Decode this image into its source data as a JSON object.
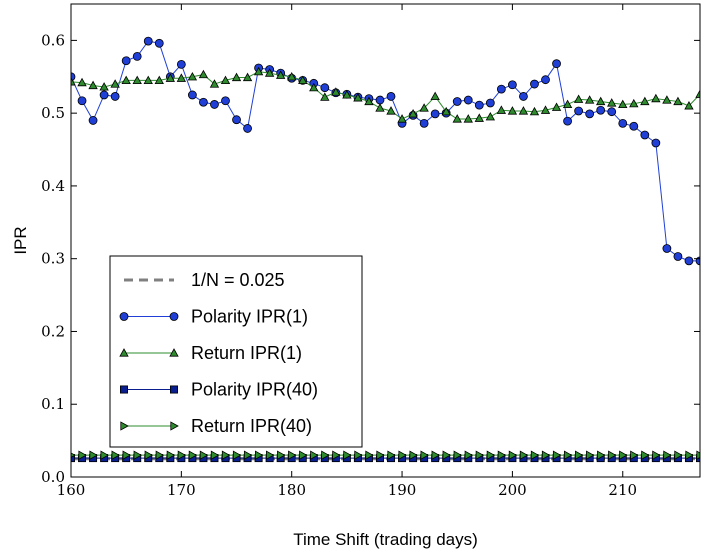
{
  "chart_data": {
    "type": "line",
    "xlabel": "Time Shift (trading days)",
    "ylabel": "IPR",
    "xlim": [
      160,
      217
    ],
    "ylim": [
      0.0,
      0.65
    ],
    "xticks": [
      160,
      170,
      180,
      190,
      200,
      210
    ],
    "xtick_labels": [
      "160",
      "170",
      "180",
      "190",
      "200",
      "210"
    ],
    "yticks": [
      0.0,
      0.1,
      0.2,
      0.3,
      0.4,
      0.5,
      0.6
    ],
    "ytick_labels": [
      "0.0",
      "0.1",
      "0.2",
      "0.3",
      "0.4",
      "0.5",
      "0.6"
    ],
    "grid": false,
    "legend_position": "lower-left",
    "x": [
      160,
      161,
      162,
      163,
      164,
      165,
      166,
      167,
      168,
      169,
      170,
      171,
      172,
      173,
      174,
      175,
      176,
      177,
      178,
      179,
      180,
      181,
      182,
      183,
      184,
      185,
      186,
      187,
      188,
      189,
      190,
      191,
      192,
      193,
      194,
      195,
      196,
      197,
      198,
      199,
      200,
      201,
      202,
      203,
      204,
      205,
      206,
      207,
      208,
      209,
      210,
      211,
      212,
      213,
      214,
      215,
      216,
      217
    ],
    "series": [
      {
        "name": "1/N = 0.025",
        "marker": "none",
        "linestyle": "dashed",
        "color": "#808080",
        "values": [
          0.025,
          0.025,
          0.025,
          0.025,
          0.025,
          0.025,
          0.025,
          0.025,
          0.025,
          0.025,
          0.025,
          0.025,
          0.025,
          0.025,
          0.025,
          0.025,
          0.025,
          0.025,
          0.025,
          0.025,
          0.025,
          0.025,
          0.025,
          0.025,
          0.025,
          0.025,
          0.025,
          0.025,
          0.025,
          0.025,
          0.025,
          0.025,
          0.025,
          0.025,
          0.025,
          0.025,
          0.025,
          0.025,
          0.025,
          0.025,
          0.025,
          0.025,
          0.025,
          0.025,
          0.025,
          0.025,
          0.025,
          0.025,
          0.025,
          0.025,
          0.025,
          0.025,
          0.025,
          0.025,
          0.025,
          0.025,
          0.025,
          0.025
        ]
      },
      {
        "name": "Polarity IPR(1)",
        "marker": "circle",
        "linestyle": "solid",
        "color": "#1f3fd6",
        "values": [
          0.55,
          0.517,
          0.49,
          0.525,
          0.523,
          0.572,
          0.578,
          0.599,
          0.596,
          0.55,
          0.567,
          0.525,
          0.515,
          0.512,
          0.517,
          0.491,
          0.479,
          0.562,
          0.56,
          0.555,
          0.548,
          0.545,
          0.541,
          0.535,
          0.528,
          0.526,
          0.522,
          0.52,
          0.518,
          0.523,
          0.486,
          0.497,
          0.486,
          0.499,
          0.5,
          0.516,
          0.518,
          0.511,
          0.514,
          0.533,
          0.539,
          0.523,
          0.54,
          0.546,
          0.568,
          0.489,
          0.503,
          0.499,
          0.504,
          0.502,
          0.486,
          0.482,
          0.47,
          0.459,
          0.314,
          0.303,
          0.297,
          0.297
        ]
      },
      {
        "name": "Return IPR(1)",
        "marker": "triangle-up",
        "linestyle": "solid",
        "color": "#2e8b2e",
        "values": [
          0.543,
          0.542,
          0.538,
          0.536,
          0.54,
          0.545,
          0.545,
          0.545,
          0.545,
          0.548,
          0.548,
          0.55,
          0.553,
          0.54,
          0.545,
          0.549,
          0.549,
          0.557,
          0.555,
          0.552,
          0.55,
          0.545,
          0.535,
          0.522,
          0.529,
          0.525,
          0.521,
          0.516,
          0.507,
          0.503,
          0.492,
          0.499,
          0.507,
          0.523,
          0.502,
          0.492,
          0.492,
          0.493,
          0.495,
          0.504,
          0.503,
          0.503,
          0.502,
          0.504,
          0.508,
          0.512,
          0.519,
          0.518,
          0.516,
          0.514,
          0.512,
          0.513,
          0.516,
          0.52,
          0.518,
          0.516,
          0.51,
          0.526
        ]
      },
      {
        "name": "Polarity IPR(40)",
        "marker": "square",
        "linestyle": "solid",
        "color": "#0a1f8f",
        "values": [
          0.026,
          0.026,
          0.026,
          0.026,
          0.026,
          0.026,
          0.026,
          0.026,
          0.026,
          0.026,
          0.026,
          0.026,
          0.026,
          0.026,
          0.026,
          0.026,
          0.026,
          0.026,
          0.026,
          0.026,
          0.026,
          0.026,
          0.026,
          0.026,
          0.026,
          0.026,
          0.026,
          0.026,
          0.026,
          0.026,
          0.026,
          0.026,
          0.026,
          0.026,
          0.026,
          0.026,
          0.026,
          0.026,
          0.026,
          0.026,
          0.026,
          0.026,
          0.026,
          0.026,
          0.026,
          0.026,
          0.026,
          0.026,
          0.026,
          0.026,
          0.026,
          0.026,
          0.026,
          0.026,
          0.026,
          0.026,
          0.026,
          0.026
        ]
      },
      {
        "name": "Return IPR(40)",
        "marker": "triangle-right",
        "linestyle": "solid",
        "color": "#2e8b2e",
        "values": [
          0.03,
          0.03,
          0.03,
          0.03,
          0.03,
          0.03,
          0.03,
          0.03,
          0.03,
          0.03,
          0.03,
          0.03,
          0.03,
          0.03,
          0.03,
          0.03,
          0.03,
          0.03,
          0.03,
          0.03,
          0.03,
          0.03,
          0.03,
          0.03,
          0.03,
          0.03,
          0.03,
          0.03,
          0.03,
          0.03,
          0.03,
          0.03,
          0.03,
          0.03,
          0.03,
          0.03,
          0.03,
          0.03,
          0.03,
          0.03,
          0.03,
          0.03,
          0.03,
          0.03,
          0.03,
          0.03,
          0.03,
          0.03,
          0.03,
          0.03,
          0.03,
          0.03,
          0.03,
          0.03,
          0.03,
          0.03,
          0.03,
          0.03
        ]
      }
    ]
  }
}
